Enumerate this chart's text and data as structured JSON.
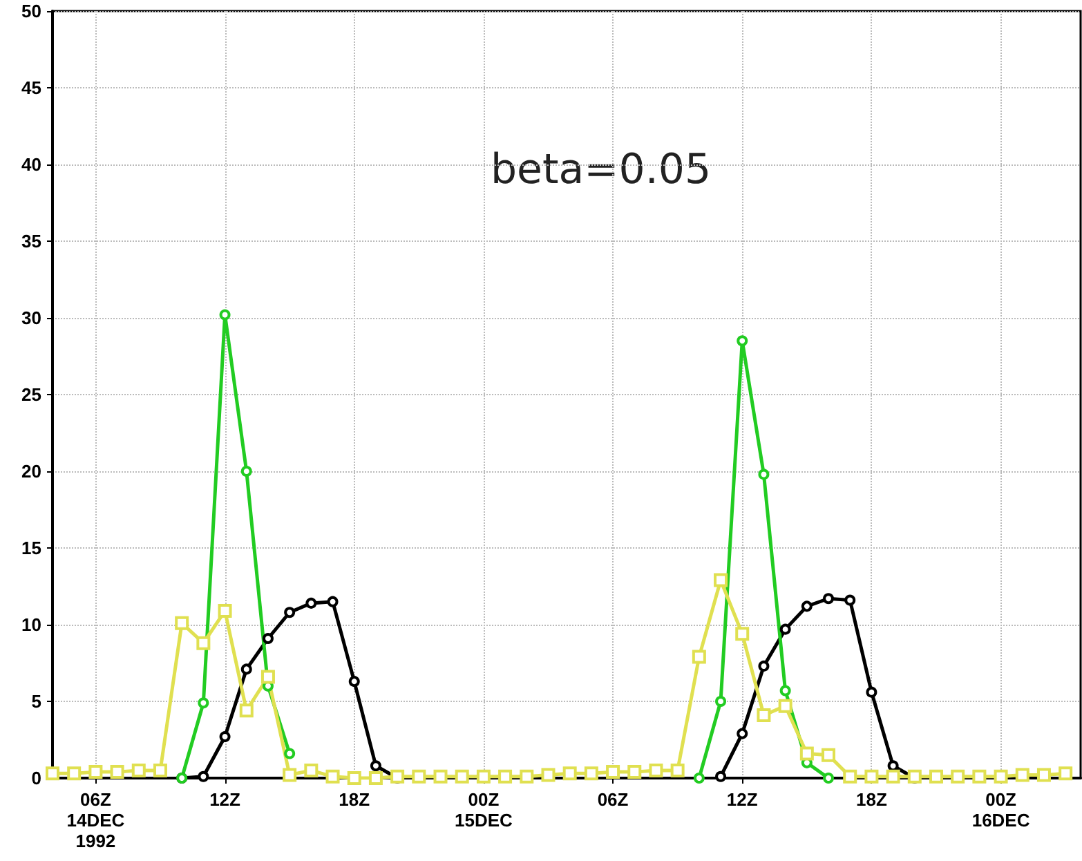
{
  "chart_data": {
    "type": "line",
    "annotations": [
      "beta=0.05"
    ],
    "x": [
      "1992-12-14T04:00",
      "1992-12-14T05:00",
      "1992-12-14T06:00",
      "1992-12-14T07:00",
      "1992-12-14T08:00",
      "1992-12-14T09:00",
      "1992-12-14T10:00",
      "1992-12-14T11:00",
      "1992-12-14T12:00",
      "1992-12-14T13:00",
      "1992-12-14T14:00",
      "1992-12-14T15:00",
      "1992-12-14T16:00",
      "1992-12-14T17:00",
      "1992-12-14T18:00",
      "1992-12-14T19:00",
      "1992-12-14T20:00",
      "1992-12-14T21:00",
      "1992-12-14T22:00",
      "1992-12-14T23:00",
      "1992-12-15T00:00",
      "1992-12-15T01:00",
      "1992-12-15T02:00",
      "1992-12-15T03:00",
      "1992-12-15T04:00",
      "1992-12-15T05:00",
      "1992-12-15T06:00",
      "1992-12-15T07:00",
      "1992-12-15T08:00",
      "1992-12-15T09:00",
      "1992-12-15T10:00",
      "1992-12-15T11:00",
      "1992-12-15T12:00",
      "1992-12-15T13:00",
      "1992-12-15T14:00",
      "1992-12-15T15:00",
      "1992-12-15T16:00",
      "1992-12-15T17:00",
      "1992-12-15T18:00",
      "1992-12-15T19:00",
      "1992-12-15T20:00",
      "1992-12-15T21:00",
      "1992-12-15T22:00",
      "1992-12-15T23:00",
      "1992-12-16T00:00",
      "1992-12-16T01:00",
      "1992-12-16T02:00",
      "1992-12-16T03:00"
    ],
    "xlim": [
      "1992-12-14T04:00",
      "1992-12-16T03:42"
    ],
    "xticks": [
      {
        "value": "1992-12-14T06:00",
        "label": "06Z\n14DEC\n1992"
      },
      {
        "value": "1992-12-14T12:00",
        "label": "12Z"
      },
      {
        "value": "1992-12-14T18:00",
        "label": "18Z"
      },
      {
        "value": "1992-12-15T00:00",
        "label": "00Z\n15DEC"
      },
      {
        "value": "1992-12-15T06:00",
        "label": "06Z"
      },
      {
        "value": "1992-12-15T12:00",
        "label": "12Z"
      },
      {
        "value": "1992-12-15T18:00",
        "label": "18Z"
      },
      {
        "value": "1992-12-16T00:00",
        "label": "00Z\n16DEC"
      }
    ],
    "ylim": [
      0,
      50
    ],
    "yticks": [
      0,
      5,
      10,
      15,
      20,
      25,
      30,
      35,
      40,
      45,
      50
    ],
    "grid": true,
    "series": [
      {
        "color": "#000000",
        "marker": "circle",
        "values": [
          null,
          null,
          null,
          null,
          null,
          null,
          0,
          0.1,
          2.7,
          7.1,
          9.1,
          10.8,
          11.4,
          11.5,
          6.3,
          0.8,
          0,
          null,
          null,
          null,
          null,
          null,
          null,
          null,
          null,
          null,
          null,
          null,
          null,
          null,
          null,
          0.1,
          2.9,
          7.3,
          9.7,
          11.2,
          11.7,
          11.6,
          5.6,
          0.8,
          0,
          null,
          null,
          null,
          null,
          null,
          null,
          null
        ]
      },
      {
        "color": "#22cc22",
        "marker": "circle",
        "values": [
          null,
          null,
          null,
          null,
          null,
          null,
          0,
          4.9,
          30.2,
          20.0,
          6.0,
          1.6,
          null,
          null,
          null,
          null,
          null,
          null,
          null,
          null,
          null,
          null,
          null,
          null,
          null,
          null,
          null,
          null,
          null,
          null,
          0,
          5.0,
          28.5,
          19.8,
          5.7,
          1.0,
          0,
          null,
          null,
          null,
          null,
          null,
          null,
          null,
          null,
          null,
          null,
          null
        ]
      },
      {
        "color": "#e0e050",
        "marker": "square",
        "values": [
          0.3,
          0.3,
          0.4,
          0.4,
          0.5,
          0.5,
          10.1,
          8.8,
          10.9,
          4.4,
          6.6,
          0.2,
          0.5,
          0.1,
          0,
          0,
          0.1,
          0.1,
          0.1,
          0.1,
          0.1,
          0.1,
          0.1,
          0.2,
          0.3,
          0.3,
          0.4,
          0.4,
          0.5,
          0.5,
          7.9,
          12.9,
          9.4,
          4.1,
          4.7,
          1.6,
          1.5,
          0.1,
          0.1,
          0.1,
          0.1,
          0.1,
          0.1,
          0.1,
          0.1,
          0.2,
          0.2,
          0.3
        ]
      }
    ]
  }
}
